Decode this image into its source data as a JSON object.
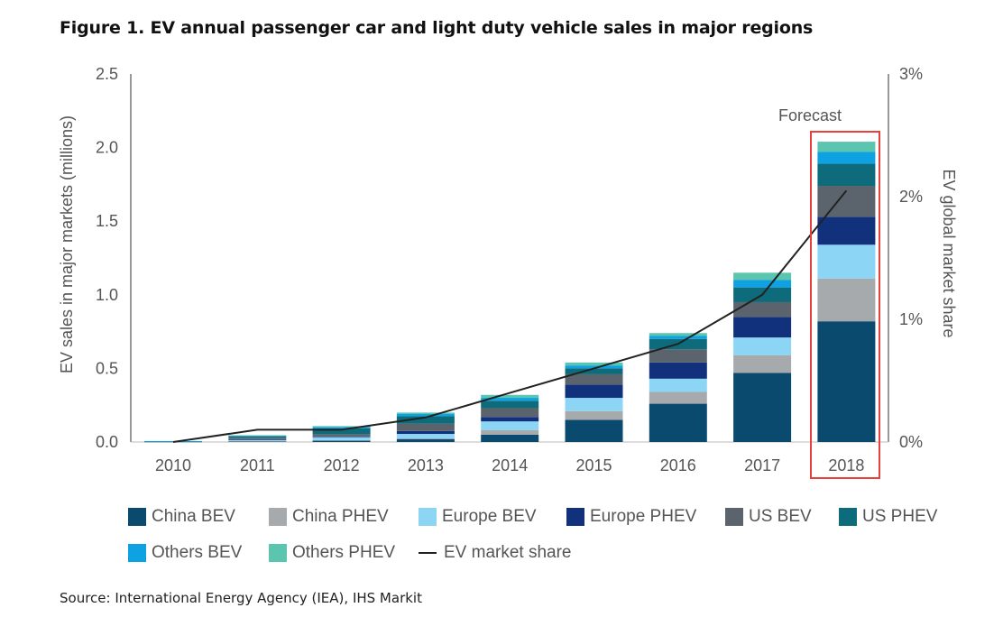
{
  "title": "Figure 1. EV annual passenger car and light duty vehicle sales in major regions",
  "source": "Source: International Energy Agency (IEA), IHS Markit",
  "forecast_label": "Forecast",
  "chart_data": {
    "type": "bar",
    "stacked": true,
    "categories": [
      "2010",
      "2011",
      "2012",
      "2013",
      "2014",
      "2015",
      "2016",
      "2017",
      "2018"
    ],
    "ylabel": "EV sales in major markets (millions)",
    "ylim": [
      0,
      2.5
    ],
    "yticks": [
      "0.0",
      "0.5",
      "1.0",
      "1.5",
      "2.0",
      "2.5"
    ],
    "y2label": "EV global market share",
    "y2lim": [
      0,
      3
    ],
    "y2ticks": [
      "0%",
      "1%",
      "2%",
      "3%"
    ],
    "series": [
      {
        "name": "China BEV",
        "color": "#0b4a6f",
        "values": [
          0.0,
          0.005,
          0.01,
          0.02,
          0.05,
          0.15,
          0.26,
          0.47,
          0.82
        ]
      },
      {
        "name": "China PHEV",
        "color": "#a6aaad",
        "values": [
          0.0,
          0.002,
          0.003,
          0.005,
          0.03,
          0.06,
          0.08,
          0.12,
          0.29
        ]
      },
      {
        "name": "Europe BEV",
        "color": "#8cd5f5",
        "values": [
          0.002,
          0.01,
          0.02,
          0.03,
          0.06,
          0.09,
          0.09,
          0.12,
          0.23
        ]
      },
      {
        "name": "Europe PHEV",
        "color": "#12317d",
        "values": [
          0.0,
          0.002,
          0.005,
          0.02,
          0.03,
          0.09,
          0.11,
          0.14,
          0.19
        ]
      },
      {
        "name": "US BEV",
        "color": "#5b646c",
        "values": [
          0.001,
          0.01,
          0.015,
          0.05,
          0.06,
          0.07,
          0.09,
          0.1,
          0.21
        ]
      },
      {
        "name": "US PHEV",
        "color": "#0d6b7b",
        "values": [
          0.002,
          0.01,
          0.04,
          0.05,
          0.05,
          0.04,
          0.07,
          0.1,
          0.15
        ]
      },
      {
        "name": "Others BEV",
        "color": "#0fa2e3",
        "values": [
          0.001,
          0.005,
          0.01,
          0.015,
          0.02,
          0.02,
          0.02,
          0.05,
          0.08
        ]
      },
      {
        "name": "Others PHEV",
        "color": "#5cc5b0",
        "values": [
          0.0,
          0.002,
          0.005,
          0.01,
          0.02,
          0.02,
          0.02,
          0.05,
          0.07
        ]
      }
    ],
    "line_series": {
      "name": "EV market share",
      "color": "#222222",
      "values": [
        0.0,
        0.1,
        0.1,
        0.2,
        0.4,
        0.6,
        0.8,
        1.2,
        2.05
      ]
    },
    "grid": false,
    "legend_position": "bottom"
  }
}
